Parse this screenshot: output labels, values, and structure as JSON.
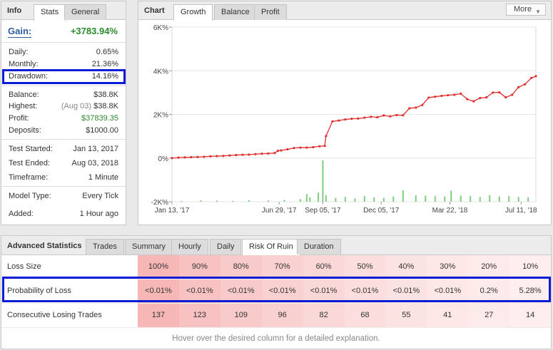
{
  "info": {
    "title": "Info",
    "tabs": [
      {
        "label": "Stats",
        "active": true
      },
      {
        "label": "General",
        "active": false
      }
    ],
    "gain": {
      "label": "Gain:",
      "value": "+3783.94%"
    },
    "rows": [
      {
        "label": "Daily:",
        "value": "0.65%"
      },
      {
        "label": "Monthly:",
        "value": "21.36%"
      },
      {
        "label": "Drawdown:",
        "value": "14.16%"
      },
      {
        "label": "Balance:",
        "value": "$38.8K"
      },
      {
        "label": "Highest:",
        "sub": "(Aug 03)",
        "value": "$38.8K"
      },
      {
        "label": "Profit:",
        "value": "$37839.35"
      },
      {
        "label": "Deposits:",
        "value": "$1000.00"
      },
      {
        "label": "Test Started:",
        "value": "Jan 13, 2017"
      },
      {
        "label": "Test Ended:",
        "value": "Aug 03, 2018"
      },
      {
        "label": "Timeframe:",
        "value": "1 Minute"
      },
      {
        "label": "Model Type:",
        "value": "Every Tick"
      },
      {
        "label": "Added:",
        "value": "1 Hour ago"
      }
    ]
  },
  "chart_panel": {
    "title": "Chart",
    "tabs": [
      {
        "label": "Growth",
        "active": true
      },
      {
        "label": "Balance",
        "active": false
      },
      {
        "label": "Profit",
        "active": false
      }
    ],
    "more_label": "More"
  },
  "chart_data": {
    "type": "line",
    "y_tick_labels": [
      "6K%",
      "4K%",
      "2K%",
      "0%",
      "-2K%"
    ],
    "y_ticks": [
      6000,
      4000,
      2000,
      0,
      -2000
    ],
    "ylim": [
      -2000,
      6000
    ],
    "x_tick_labels": [
      "Jan 13, '17",
      "Jun 29, '17",
      "Sep 05, '17",
      "Dec 05, '17",
      "Mar 22, '18",
      "Jul 11, '18"
    ],
    "x_ticks": [
      0,
      167,
      235,
      326,
      433,
      544
    ],
    "xlim": [
      0,
      567
    ],
    "series": [
      {
        "color": "#e03030",
        "x": [
          0,
          10,
          20,
          30,
          40,
          50,
          60,
          70,
          80,
          90,
          100,
          110,
          120,
          130,
          140,
          150,
          160,
          165,
          170,
          180,
          190,
          200,
          210,
          220,
          230,
          238,
          240,
          250,
          260,
          270,
          280,
          290,
          300,
          310,
          320,
          330,
          340,
          350,
          360,
          370,
          380,
          390,
          400,
          410,
          420,
          430,
          440,
          450,
          460,
          470,
          480,
          490,
          500,
          510,
          520,
          530,
          540,
          550,
          560,
          567
        ],
        "y": [
          0,
          20,
          30,
          40,
          50,
          60,
          80,
          90,
          100,
          120,
          140,
          150,
          160,
          180,
          200,
          210,
          230,
          330,
          350,
          400,
          460,
          480,
          480,
          500,
          540,
          560,
          1010,
          1680,
          1720,
          1770,
          1800,
          1810,
          1850,
          1890,
          1870,
          1950,
          1910,
          1970,
          1960,
          2280,
          2310,
          2430,
          2770,
          2810,
          2850,
          2880,
          2900,
          2950,
          2700,
          2600,
          2750,
          2780,
          3000,
          3010,
          2780,
          2900,
          3250,
          3380,
          3670,
          3750
        ]
      }
    ],
    "volume": {
      "color": "#7dcf7d",
      "x": [
        15,
        45,
        70,
        95,
        120,
        150,
        175,
        200,
        210,
        215,
        228,
        235,
        240,
        255,
        270,
        285,
        300,
        315,
        330,
        345,
        360,
        380,
        395,
        410,
        425,
        435,
        450,
        465,
        480,
        495,
        510,
        525,
        540,
        555
      ],
      "y": [
        40,
        60,
        50,
        40,
        70,
        60,
        80,
        120,
        350,
        200,
        420,
        1900,
        300,
        180,
        220,
        150,
        260,
        200,
        180,
        240,
        520,
        300,
        280,
        260,
        240,
        510,
        280,
        260,
        220,
        300,
        240,
        260,
        220,
        200
      ]
    }
  },
  "advanced": {
    "title": "Advanced Statistics",
    "tabs": [
      {
        "label": "Trades",
        "active": false
      },
      {
        "label": "Summary",
        "active": false
      },
      {
        "label": "Hourly",
        "active": false
      },
      {
        "label": "Daily",
        "active": false
      },
      {
        "label": "Risk Of Ruin",
        "active": true
      },
      {
        "label": "Duration",
        "active": false
      }
    ],
    "rows": [
      {
        "label": "Loss Size",
        "values": [
          "100%",
          "90%",
          "80%",
          "70%",
          "60%",
          "50%",
          "40%",
          "30%",
          "20%",
          "10%"
        ]
      },
      {
        "label": "Probability of Loss",
        "values": [
          "<0.01%",
          "<0.01%",
          "<0.01%",
          "<0.01%",
          "<0.01%",
          "<0.01%",
          "<0.01%",
          "<0.01%",
          "0.2%",
          "5.28%"
        ]
      },
      {
        "label": "Consecutive Losing Trades",
        "values": [
          "137",
          "123",
          "109",
          "96",
          "82",
          "68",
          "55",
          "41",
          "27",
          "14"
        ]
      }
    ],
    "cell_colors": [
      "#f7b7b7",
      "#f8c2c2",
      "#f9caca",
      "#fad1d1",
      "#fbd8d8",
      "#fcdede",
      "#fce3e3",
      "#fde7e7",
      "#fdeaea",
      "#feeeee"
    ],
    "hint": "Hover over the desired column for a detailed explanation."
  },
  "highlight_color": "#0b1bd6"
}
